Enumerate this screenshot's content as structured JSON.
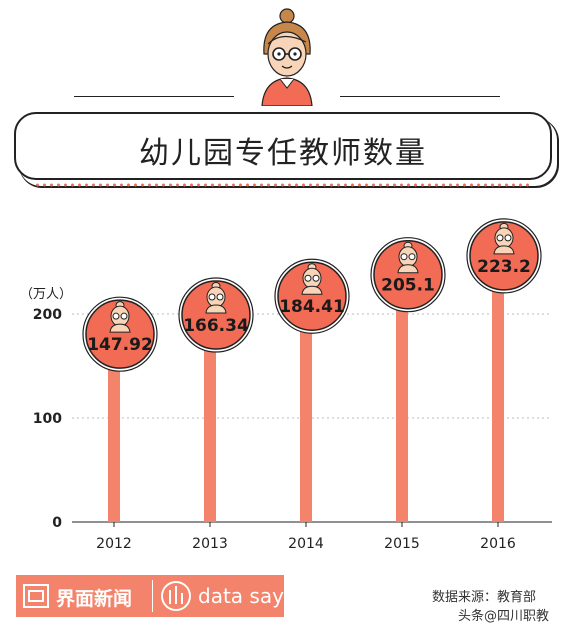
{
  "title": "幼儿园专任教师数量",
  "unit_label": "（万人）",
  "footer": {
    "brand": "界面新闻",
    "sub_brand": "data says",
    "source": "数据来源：教育部",
    "watermark": "头条@四川职教"
  },
  "colors": {
    "accent": "#f4836b",
    "bar": "#f4836b",
    "circle": "#f26b55"
  },
  "chart_data": {
    "type": "bar",
    "title": "幼儿园专任教师数量",
    "ylabel": "（万人）",
    "categories": [
      "2012",
      "2013",
      "2014",
      "2015",
      "2016"
    ],
    "values": [
      147.92,
      166.34,
      184.41,
      205.1,
      223.2
    ],
    "value_labels": [
      "147.92",
      "166.34",
      "184.41",
      "205.1",
      "223.2"
    ],
    "yticks": [
      0,
      100,
      200
    ],
    "ylim": [
      0,
      200
    ],
    "grid": true
  }
}
